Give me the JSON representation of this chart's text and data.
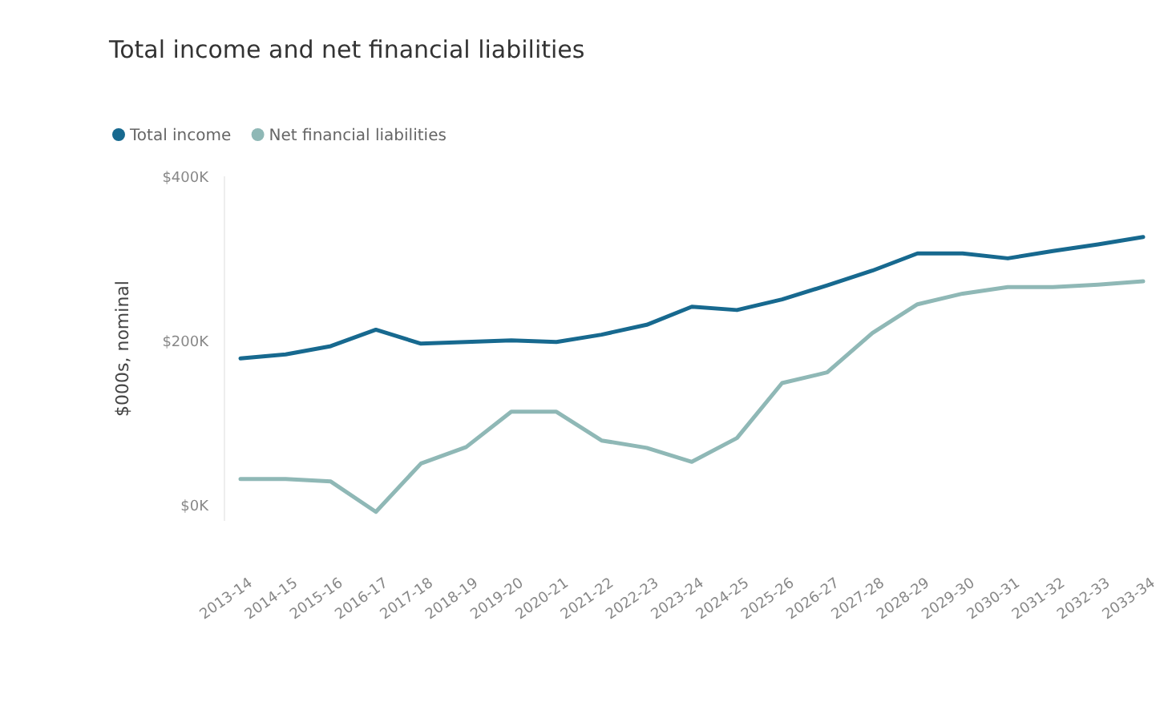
{
  "chart_data": {
    "type": "line",
    "title": "Total income and net financial liabilities",
    "ylabel": "$000s, nominal",
    "categories": [
      "2013-14",
      "2014-15",
      "2015-16",
      "2016-17",
      "2017-18",
      "2018-19",
      "2019-20",
      "2020-21",
      "2021-22",
      "2022-23",
      "2023-24",
      "2024-25",
      "2025-26",
      "2026-27",
      "2027-28",
      "2028-29",
      "2029-30",
      "2030-31",
      "2031-32",
      "2032-33",
      "2033-34"
    ],
    "series": [
      {
        "name": "Total income",
        "color": "#17698f",
        "values": [
          178,
          183,
          193,
          213,
          196,
          198,
          200,
          198,
          207,
          219,
          241,
          237,
          250,
          267,
          285,
          306,
          306,
          300,
          309,
          317,
          326
        ]
      },
      {
        "name": "Net financial liabilities",
        "color": "#8fb8b6",
        "values": [
          31,
          31,
          28,
          -9,
          50,
          70,
          113,
          113,
          78,
          69,
          52,
          81,
          148,
          161,
          209,
          244,
          257,
          265,
          265,
          268,
          272
        ]
      }
    ],
    "ylim": [
      -20,
      400
    ],
    "yticks": [
      {
        "value": 0,
        "label": "$0K"
      },
      {
        "value": 200,
        "label": "$200K"
      },
      {
        "value": 400,
        "label": "$400K"
      }
    ],
    "grid": false,
    "legend": "top left",
    "marker": "none",
    "line_style": "solid"
  }
}
